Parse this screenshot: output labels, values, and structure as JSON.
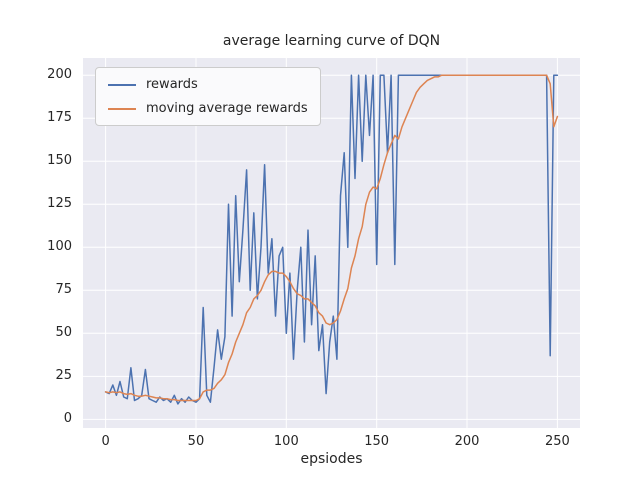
{
  "chart_data": {
    "type": "line",
    "title": "average learning curve of DQN",
    "xlabel": "epsiodes",
    "ylabel": "",
    "xlim": [
      -12.5,
      262.5
    ],
    "ylim": [
      -5,
      210
    ],
    "xticks": [
      0,
      50,
      100,
      150,
      200,
      250
    ],
    "yticks": [
      0,
      25,
      50,
      75,
      100,
      125,
      150,
      175,
      200
    ],
    "grid": true,
    "legend_position": "upper left",
    "x": [
      0,
      2,
      4,
      6,
      8,
      10,
      12,
      14,
      16,
      18,
      20,
      22,
      24,
      26,
      28,
      30,
      32,
      34,
      36,
      38,
      40,
      42,
      44,
      46,
      48,
      50,
      52,
      54,
      56,
      58,
      60,
      62,
      64,
      66,
      68,
      70,
      72,
      74,
      76,
      78,
      80,
      82,
      84,
      86,
      88,
      90,
      92,
      94,
      96,
      98,
      100,
      102,
      104,
      106,
      108,
      110,
      112,
      114,
      116,
      118,
      120,
      122,
      124,
      126,
      128,
      130,
      132,
      134,
      136,
      138,
      140,
      142,
      144,
      146,
      148,
      150,
      152,
      154,
      156,
      158,
      160,
      162,
      164,
      166,
      168,
      170,
      172,
      174,
      176,
      178,
      180,
      182,
      184,
      186,
      188,
      190,
      192,
      194,
      196,
      198,
      200,
      202,
      204,
      206,
      208,
      210,
      212,
      214,
      216,
      218,
      220,
      222,
      224,
      226,
      228,
      230,
      232,
      234,
      236,
      238,
      240,
      242,
      244,
      246,
      248,
      250
    ],
    "series": [
      {
        "name": "rewards",
        "color": "#4c72b0",
        "y": [
          16,
          15,
          20,
          14,
          22,
          13,
          12,
          30,
          11,
          12,
          14,
          29,
          12,
          11,
          10,
          13,
          11,
          12,
          10,
          14,
          9,
          12,
          10,
          13,
          11,
          10,
          12,
          65,
          14,
          10,
          30,
          52,
          35,
          48,
          125,
          60,
          130,
          80,
          110,
          145,
          75,
          120,
          70,
          100,
          148,
          85,
          105,
          60,
          95,
          100,
          50,
          85,
          35,
          75,
          100,
          45,
          110,
          55,
          95,
          40,
          55,
          15,
          45,
          60,
          35,
          130,
          155,
          100,
          200,
          140,
          200,
          150,
          200,
          165,
          200,
          90,
          200,
          200,
          155,
          200,
          90,
          200,
          200,
          200,
          200,
          200,
          200,
          200,
          200,
          200,
          200,
          200,
          200,
          200,
          200,
          200,
          200,
          200,
          200,
          200,
          200,
          200,
          200,
          200,
          200,
          200,
          200,
          200,
          200,
          200,
          200,
          200,
          200,
          200,
          200,
          200,
          200,
          200,
          200,
          200,
          200,
          200,
          200,
          37,
          200,
          200
        ]
      },
      {
        "name": "moving average rewards",
        "color": "#dd8452",
        "y": [
          16,
          15.5,
          16,
          15.5,
          16,
          15,
          14.5,
          15,
          14,
          13.5,
          13.5,
          14,
          13.5,
          13,
          12.5,
          12.5,
          12,
          12,
          11.5,
          11.5,
          11,
          11,
          11,
          11,
          11,
          11,
          12,
          16,
          17,
          17,
          18,
          21,
          23,
          26,
          33,
          38,
          45,
          50,
          55,
          62,
          65,
          70,
          72,
          75,
          80,
          84,
          86,
          86,
          85,
          85,
          83,
          80,
          76,
          73,
          72,
          70,
          70,
          68,
          66,
          62,
          60,
          56,
          55,
          56,
          58,
          63,
          70,
          76,
          88,
          95,
          105,
          112,
          125,
          132,
          135,
          134,
          140,
          148,
          155,
          160,
          165,
          163,
          170,
          175,
          180,
          185,
          190,
          193,
          195,
          197,
          198,
          199,
          199,
          200,
          200,
          200,
          200,
          200,
          200,
          200,
          200,
          200,
          200,
          200,
          200,
          200,
          200,
          200,
          200,
          200,
          200,
          200,
          200,
          200,
          200,
          200,
          200,
          200,
          200,
          200,
          200,
          200,
          200,
          195,
          170,
          176
        ]
      }
    ]
  },
  "style": {
    "figure_bg": "#ffffff",
    "axes_bg": "#eaeaf2",
    "grid_color": "#ffffff",
    "text_color": "#262626",
    "legend_bg": "#fafafc",
    "legend_border": "#cccccc"
  }
}
